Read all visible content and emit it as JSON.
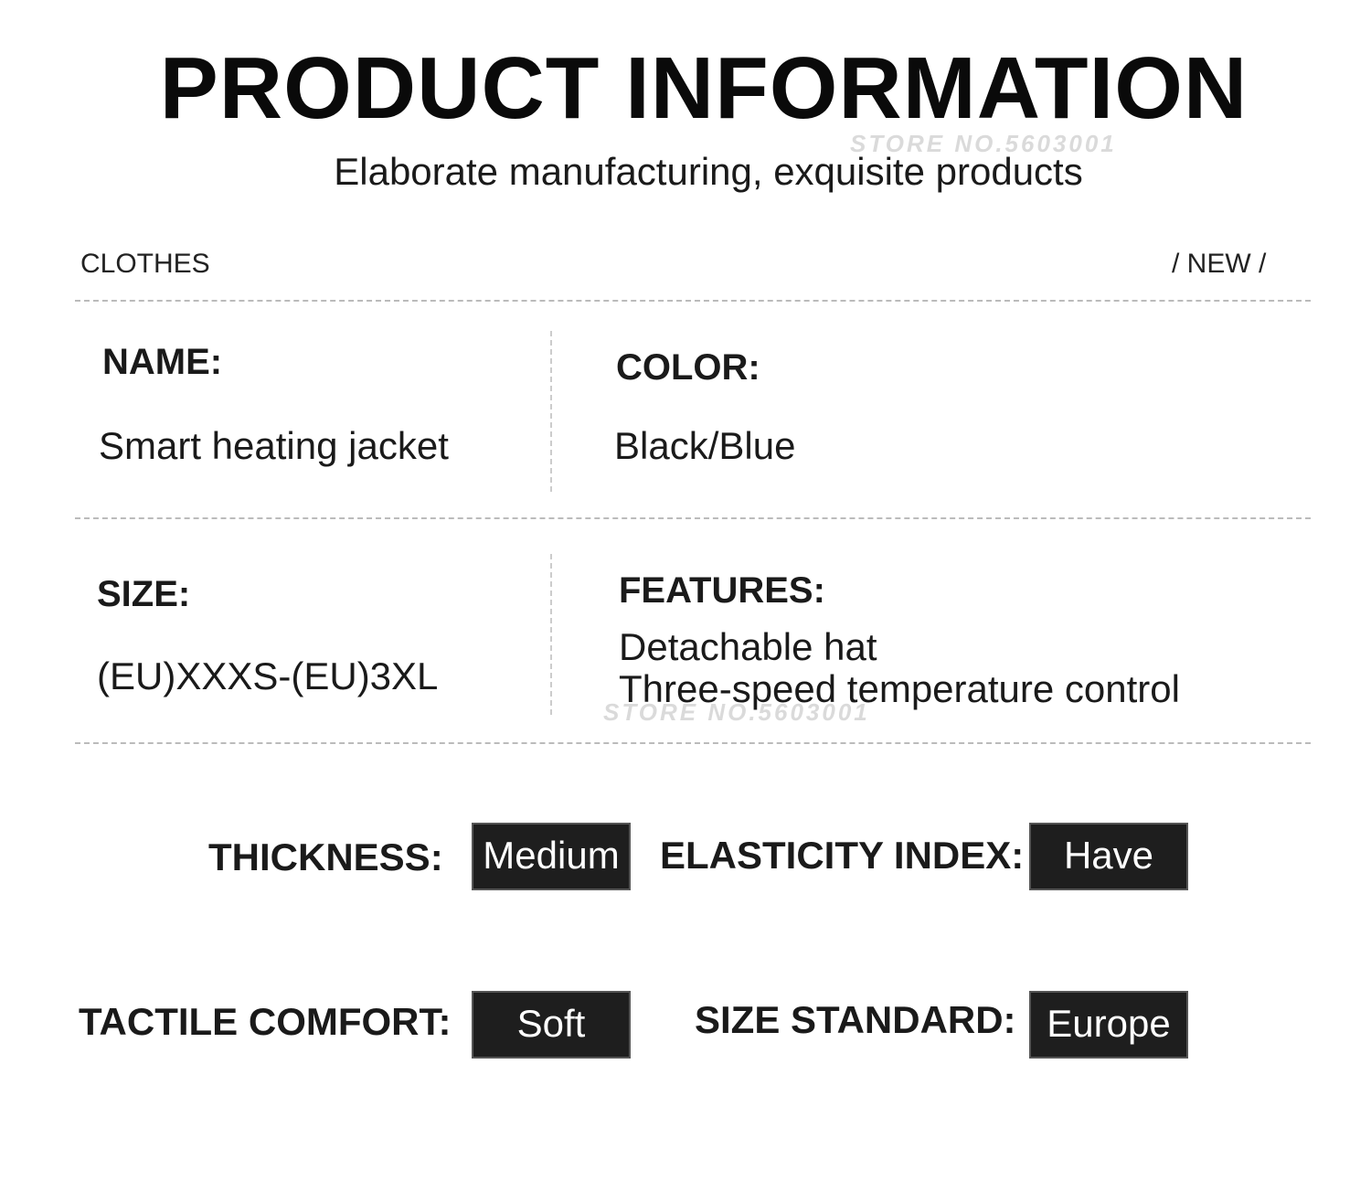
{
  "header": {
    "title": "PRODUCT INFORMATION",
    "subtitle": "Elaborate manufacturing, exquisite products"
  },
  "watermark": "STORE NO.5603001",
  "category": {
    "left": "CLOTHES",
    "right": "/  NEW  /"
  },
  "fields": {
    "name": {
      "label": "NAME:",
      "value": "Smart heating jacket"
    },
    "color": {
      "label": "COLOR:",
      "value": "Black/Blue"
    },
    "size": {
      "label": "SIZE:",
      "value": "(EU)XXXS-(EU)3XL"
    },
    "features": {
      "label": "FEATURES:",
      "values": [
        "Detachable hat",
        "Three-speed temperature control"
      ]
    }
  },
  "properties": {
    "thickness": {
      "label": "THICKNESS:",
      "value": "Medium"
    },
    "elasticity": {
      "label": "ELASTICITY INDEX:",
      "value": "Have"
    },
    "tactile": {
      "label": "TACTILE COMFORT:",
      "value": "Soft"
    },
    "size_standard": {
      "label": "SIZE STANDARD:",
      "value": "Europe"
    }
  }
}
